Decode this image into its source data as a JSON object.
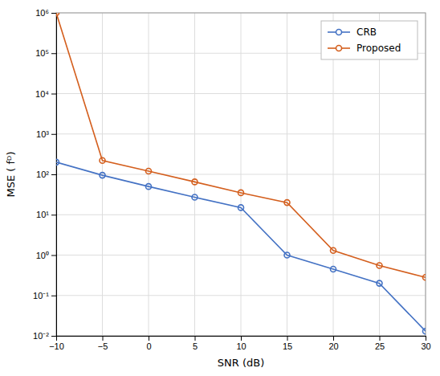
{
  "chart_data": {
    "type": "line",
    "x": [
      -10,
      -5,
      0,
      5,
      10,
      15,
      20,
      25,
      30
    ],
    "series": [
      {
        "name": "CRB",
        "color": "#4472C4",
        "marker": "circle",
        "line_style": "solid",
        "values": [
          200,
          95,
          50,
          27,
          15,
          1.0,
          0.45,
          0.2,
          0.013
        ]
      },
      {
        "name": "Proposed",
        "color": "#D45F1E",
        "marker": "circle",
        "line_style": "solid",
        "values": [
          1000000.0,
          220,
          120,
          65,
          35,
          20,
          1.3,
          0.55,
          0.28
        ]
      }
    ],
    "x_label": "SNR (dB)",
    "y_label": "MSE ( fᴰ)",
    "xlim": [
      -10,
      30
    ],
    "xticks": [
      -10,
      -5,
      0,
      5,
      10,
      15,
      20,
      25,
      30
    ],
    "ylim": [
      0.01,
      1000000
    ],
    "yticks": [
      {
        "value": 0.01,
        "label": "10⁻²"
      },
      {
        "value": 0.1,
        "label": "10⁻¹"
      },
      {
        "value": 1,
        "label": "10⁰"
      },
      {
        "value": 10,
        "label": "10¹"
      },
      {
        "value": 100,
        "label": "10²"
      },
      {
        "value": 1000,
        "label": "10³"
      },
      {
        "value": 10000,
        "label": "10⁴"
      },
      {
        "value": 100000,
        "label": "10⁵"
      },
      {
        "value": 1000000,
        "label": "10⁶"
      }
    ],
    "log": "y",
    "grid": true,
    "legend": "upper right"
  }
}
